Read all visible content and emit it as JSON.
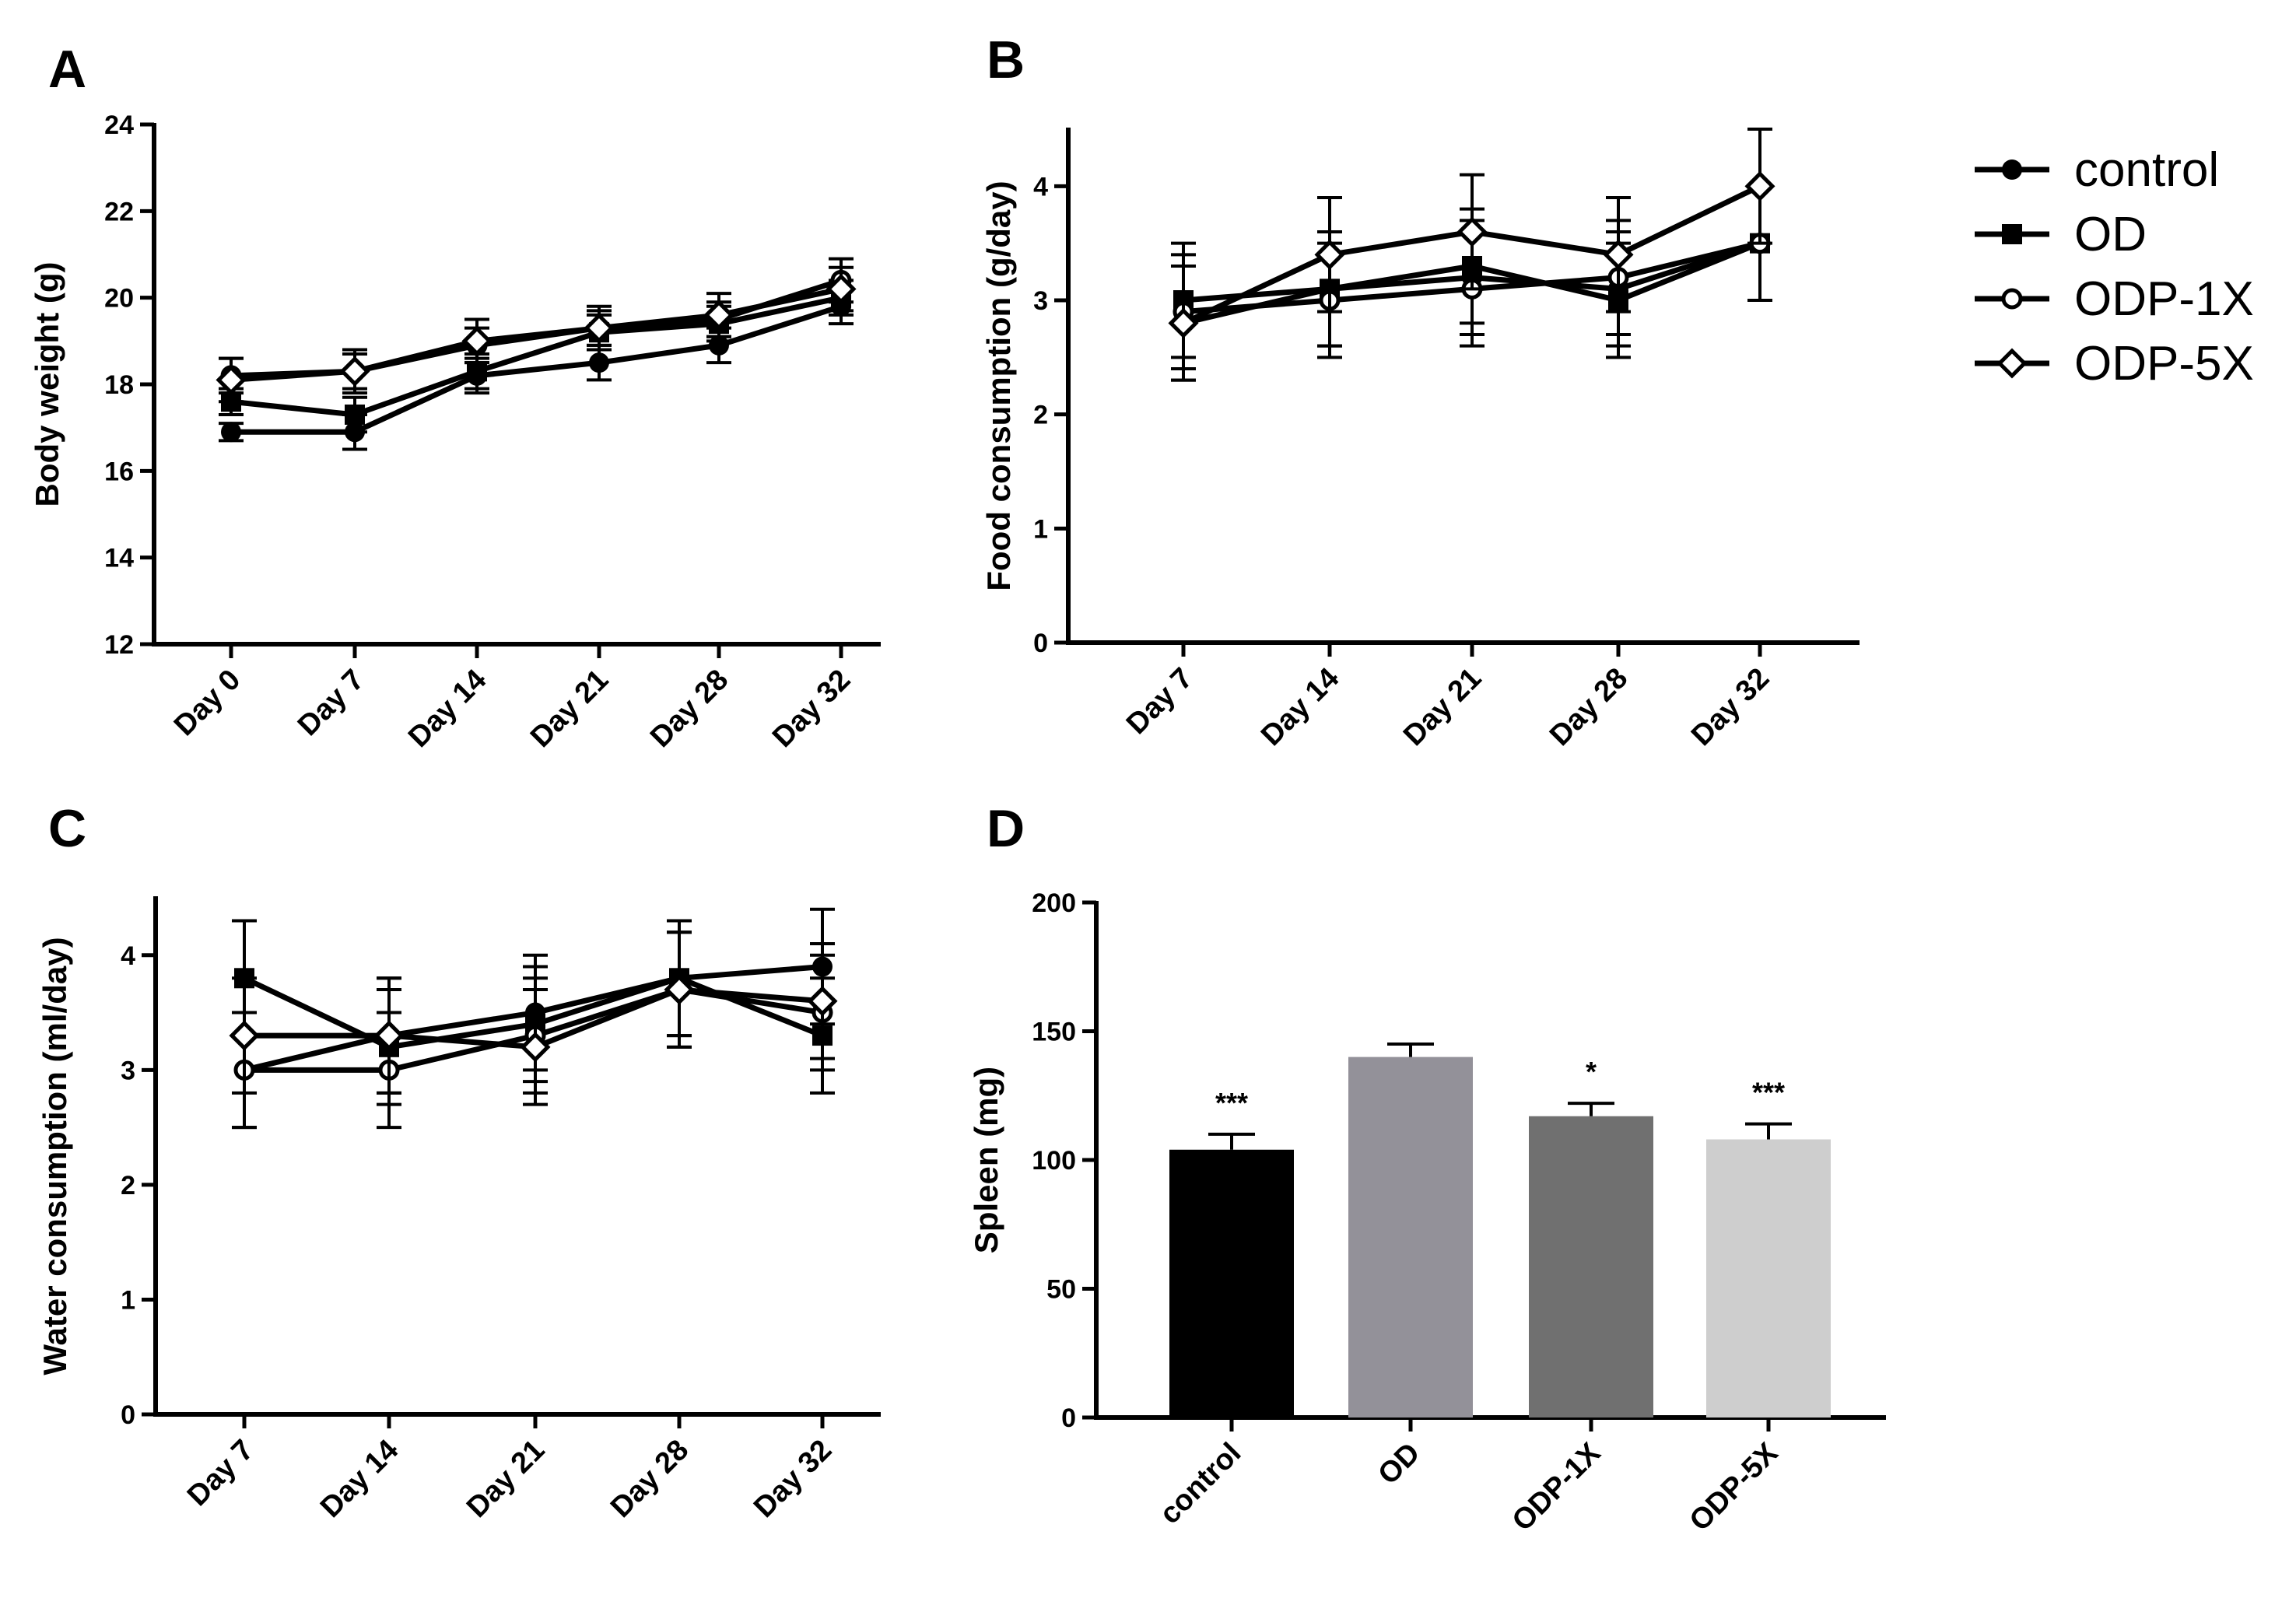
{
  "legend": {
    "placement": "top-right",
    "entries": [
      {
        "label": "control",
        "marker": "circle-filled"
      },
      {
        "label": "OD",
        "marker": "square-filled"
      },
      {
        "label": "ODP-1X",
        "marker": "circle-open"
      },
      {
        "label": "ODP-5X",
        "marker": "diamond-open"
      }
    ]
  },
  "chart_data": [
    {
      "panel": "A",
      "type": "line",
      "ylabel": "Body weight (g)",
      "xlabel": "",
      "ylim": [
        12,
        24
      ],
      "yticks": [
        12,
        14,
        16,
        18,
        20,
        22,
        24
      ],
      "categories": [
        "Day 0",
        "Day 7",
        "Day 14",
        "Day 21",
        "Day 28",
        "Day 32"
      ],
      "series": [
        {
          "name": "control",
          "values": [
            16.9,
            16.9,
            18.2,
            18.5,
            18.9,
            19.8
          ],
          "errors": [
            0.2,
            0.4,
            0.4,
            0.4,
            0.4,
            0.4
          ]
        },
        {
          "name": "OD",
          "values": [
            17.6,
            17.3,
            18.3,
            19.2,
            19.4,
            20.0
          ],
          "errors": [
            0.3,
            0.4,
            0.4,
            0.4,
            0.4,
            0.4
          ]
        },
        {
          "name": "ODP-1X",
          "values": [
            18.2,
            18.3,
            18.9,
            19.3,
            19.5,
            20.4
          ],
          "errors": [
            0.4,
            0.4,
            0.4,
            0.4,
            0.4,
            0.5
          ]
        },
        {
          "name": "ODP-5X",
          "values": [
            18.1,
            18.3,
            19.0,
            19.3,
            19.6,
            20.2
          ],
          "errors": [
            0.5,
            0.5,
            0.5,
            0.5,
            0.5,
            0.5
          ]
        }
      ]
    },
    {
      "panel": "B",
      "type": "line",
      "ylabel": "Food consumption (g/day)",
      "xlabel": "",
      "ylim": [
        0,
        4.5
      ],
      "yticks": [
        0,
        1,
        2,
        3,
        4
      ],
      "categories": [
        "Day 7",
        "Day 14",
        "Day 21",
        "Day 28",
        "Day 32"
      ],
      "series": [
        {
          "name": "control",
          "values": [
            2.8,
            3.1,
            3.2,
            3.1,
            3.5
          ],
          "errors": [
            0.5,
            0.5,
            0.5,
            0.5,
            0.5
          ]
        },
        {
          "name": "OD",
          "values": [
            3.0,
            3.1,
            3.3,
            3.0,
            3.5
          ],
          "errors": [
            0.5,
            0.5,
            0.5,
            0.5,
            0.5
          ]
        },
        {
          "name": "ODP-1X",
          "values": [
            2.9,
            3.0,
            3.1,
            3.2,
            3.5
          ],
          "errors": [
            0.5,
            0.5,
            0.5,
            0.5,
            0.5
          ]
        },
        {
          "name": "ODP-5X",
          "values": [
            2.8,
            3.4,
            3.6,
            3.4,
            4.0
          ],
          "errors": [
            0.5,
            0.5,
            0.5,
            0.5,
            0.5
          ]
        }
      ]
    },
    {
      "panel": "C",
      "type": "line",
      "ylabel": "Water consumption (ml/day)",
      "xlabel": "",
      "ylim": [
        0,
        4.5
      ],
      "yticks": [
        0,
        1,
        2,
        3,
        4
      ],
      "categories": [
        "Day 7",
        "Day 14",
        "Day 21",
        "Day 28",
        "Day 32"
      ],
      "series": [
        {
          "name": "control",
          "values": [
            3.0,
            3.3,
            3.5,
            3.8,
            3.9
          ],
          "errors": [
            0.5,
            0.5,
            0.5,
            0.5,
            0.5
          ]
        },
        {
          "name": "OD",
          "values": [
            3.8,
            3.2,
            3.4,
            3.8,
            3.3
          ],
          "errors": [
            0.5,
            0.5,
            0.5,
            0.5,
            0.5
          ]
        },
        {
          "name": "ODP-1X",
          "values": [
            3.0,
            3.0,
            3.3,
            3.7,
            3.5
          ],
          "errors": [
            0.5,
            0.5,
            0.5,
            0.5,
            0.5
          ]
        },
        {
          "name": "ODP-5X",
          "values": [
            3.3,
            3.3,
            3.2,
            3.7,
            3.6
          ],
          "errors": [
            0.5,
            0.5,
            0.5,
            0.5,
            0.5
          ]
        }
      ]
    },
    {
      "panel": "D",
      "type": "bar",
      "ylabel": "Spleen (mg)",
      "xlabel": "",
      "ylim": [
        0,
        200
      ],
      "yticks": [
        0,
        50,
        100,
        150,
        200
      ],
      "categories": [
        "control",
        "OD",
        "ODP-1X",
        "ODP-5X"
      ],
      "values": [
        104,
        140,
        117,
        108
      ],
      "errors": [
        6,
        5,
        5,
        6
      ],
      "significance": [
        "***",
        "",
        "*",
        "***"
      ],
      "colors": [
        "#000000",
        "#939199",
        "#707070",
        "#cecece"
      ]
    }
  ]
}
